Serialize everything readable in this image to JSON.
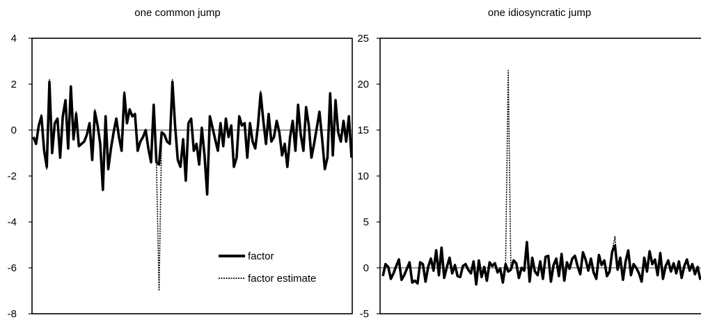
{
  "chart_data": [
    {
      "type": "line",
      "title": "one common jump",
      "xlabel": "",
      "ylabel": "",
      "ylim": [
        -8,
        4
      ],
      "yticks": [
        -8,
        -6,
        -4,
        -2,
        0,
        2,
        4
      ],
      "grid": false,
      "zero_line": true,
      "legend_position": "bottom-right",
      "colors": {
        "factor": "#000000",
        "factor estimate": "#000000",
        "zero_line": "#999999"
      },
      "x": [
        1,
        2,
        3,
        4,
        5,
        6,
        7,
        8,
        9,
        10,
        11,
        12,
        13,
        14,
        15,
        16,
        17,
        18,
        19,
        20,
        21,
        22,
        23,
        24,
        25,
        26,
        27,
        28,
        29,
        30,
        31,
        32,
        33,
        34,
        35,
        36,
        37,
        38,
        39,
        40,
        41,
        42,
        43,
        44,
        45,
        46,
        47,
        48,
        49,
        50,
        51,
        52,
        53,
        54,
        55,
        56,
        57,
        58,
        59,
        60,
        61,
        62,
        63,
        64,
        65,
        66,
        67,
        68,
        69,
        70,
        71,
        72,
        73,
        74,
        75,
        76,
        77,
        78,
        79,
        80,
        81,
        82,
        83,
        84,
        85,
        86,
        87,
        88,
        89,
        90,
        91,
        92,
        93,
        94,
        95,
        96,
        97,
        98,
        99,
        100,
        101,
        102,
        103,
        104,
        105,
        106,
        107,
        108,
        109,
        110,
        111,
        112,
        113,
        114,
        115,
        116,
        117,
        118,
        119,
        120
      ],
      "series": [
        {
          "name": "factor",
          "style": "solid",
          "values": [
            -0.3,
            -0.6,
            0.2,
            0.6,
            -0.9,
            -1.6,
            2.1,
            -1.0,
            0.3,
            0.5,
            -1.2,
            0.6,
            1.3,
            -0.8,
            1.9,
            -0.4,
            0.7,
            -0.7,
            -0.6,
            -0.5,
            -0.2,
            0.3,
            -1.3,
            0.8,
            0.2,
            -0.6,
            -2.6,
            0.6,
            -1.7,
            -0.8,
            -0.1,
            0.5,
            -0.3,
            -0.9,
            1.6,
            0.3,
            0.9,
            0.6,
            0.7,
            -0.9,
            -0.5,
            -0.3,
            0.0,
            -0.8,
            -1.4,
            1.1,
            -1.4,
            -1.5,
            -0.1,
            -0.2,
            -0.5,
            -0.6,
            2.1,
            0.2,
            -1.3,
            -1.6,
            -0.4,
            -2.2,
            0.3,
            0.5,
            -0.9,
            -0.6,
            -1.5,
            0.1,
            -1.1,
            -2.8,
            0.6,
            0.1,
            -0.4,
            -0.9,
            0.3,
            -0.7,
            0.5,
            -0.3,
            0.2,
            -1.6,
            -1.2,
            0.6,
            0.2,
            0.3,
            -1.2,
            0.3,
            -0.5,
            -0.8,
            0.2,
            1.6,
            0.4,
            -0.6,
            0.7,
            -0.5,
            -0.3,
            0.4,
            -0.1,
            -1.1,
            -0.6,
            -1.6,
            -0.3,
            0.4,
            -0.9,
            1.1,
            -0.2,
            -0.9,
            1.0,
            0.2,
            -1.2,
            -0.6,
            0.1,
            0.8,
            -0.4,
            -1.7,
            -1.2,
            1.6,
            -1.1,
            1.3,
            -0.1,
            -0.5,
            0.4,
            -0.5,
            0.6,
            -1.2
          ]
        },
        {
          "name": "factor estimate",
          "style": "dotted",
          "values": [
            -0.3,
            -0.5,
            0.2,
            0.7,
            -0.8,
            -1.7,
            2.2,
            -0.9,
            0.3,
            0.5,
            -1.1,
            0.6,
            1.2,
            -0.8,
            1.8,
            -0.4,
            0.8,
            -0.7,
            -0.6,
            -0.5,
            -0.2,
            0.3,
            -1.3,
            0.9,
            0.2,
            -0.6,
            -2.5,
            0.6,
            -1.6,
            -0.8,
            -0.1,
            0.5,
            -0.3,
            -0.9,
            1.7,
            0.3,
            0.9,
            0.6,
            0.7,
            -0.9,
            -0.5,
            -0.3,
            0.0,
            -0.8,
            -1.4,
            1.1,
            -1.4,
            -7.0,
            -0.1,
            -0.2,
            -0.5,
            -0.6,
            2.2,
            0.2,
            -1.3,
            -1.6,
            -0.4,
            -2.2,
            0.3,
            0.5,
            -0.9,
            -0.6,
            -1.5,
            0.1,
            -1.1,
            -2.7,
            0.6,
            0.1,
            -0.4,
            -0.9,
            0.3,
            -0.7,
            0.5,
            -0.3,
            0.2,
            -1.6,
            -1.2,
            0.6,
            0.2,
            0.3,
            -1.2,
            0.3,
            -0.5,
            -0.8,
            0.2,
            1.7,
            0.4,
            -0.6,
            0.7,
            -0.5,
            -0.3,
            0.4,
            -0.1,
            -1.1,
            -0.6,
            -1.6,
            -0.3,
            0.4,
            -0.9,
            1.1,
            -0.2,
            -0.9,
            1.0,
            0.2,
            -1.2,
            -0.6,
            0.1,
            0.8,
            -0.4,
            -1.7,
            -1.2,
            1.6,
            -1.1,
            1.3,
            -0.1,
            -0.5,
            0.4,
            -0.5,
            0.6,
            -1.2
          ]
        }
      ]
    },
    {
      "type": "line",
      "title": "one idiosyncratic jump",
      "xlabel": "",
      "ylabel": "",
      "ylim": [
        -5,
        25
      ],
      "yticks": [
        -5,
        0,
        5,
        10,
        15,
        20,
        25
      ],
      "grid": false,
      "zero_line": true,
      "colors": {
        "factor": "#000000",
        "factor estimate": "#000000",
        "zero_line": "#999999"
      },
      "x": [
        1,
        2,
        3,
        4,
        5,
        6,
        7,
        8,
        9,
        10,
        11,
        12,
        13,
        14,
        15,
        16,
        17,
        18,
        19,
        20,
        21,
        22,
        23,
        24,
        25,
        26,
        27,
        28,
        29,
        30,
        31,
        32,
        33,
        34,
        35,
        36,
        37,
        38,
        39,
        40,
        41,
        42,
        43,
        44,
        45,
        46,
        47,
        48,
        49,
        50,
        51,
        52,
        53,
        54,
        55,
        56,
        57,
        58,
        59,
        60,
        61,
        62,
        63,
        64,
        65,
        66,
        67,
        68,
        69,
        70,
        71,
        72,
        73,
        74,
        75,
        76,
        77,
        78,
        79,
        80,
        81,
        82,
        83,
        84,
        85,
        86,
        87,
        88,
        89,
        90,
        91,
        92,
        93,
        94,
        95,
        96,
        97,
        98,
        99,
        100,
        101,
        102,
        103,
        104,
        105,
        106,
        107,
        108,
        109,
        110,
        111,
        112,
        113,
        114,
        115,
        116,
        117,
        118,
        119,
        120
      ],
      "series": [
        {
          "name": "factor",
          "style": "solid",
          "values": [
            -0.9,
            0.4,
            0.1,
            -1.2,
            -0.6,
            0.2,
            0.9,
            -1.3,
            -0.8,
            -0.1,
            0.6,
            -1.6,
            -1.4,
            -1.7,
            0.6,
            0.4,
            -1.5,
            0.1,
            1.0,
            -0.3,
            1.9,
            -0.8,
            2.2,
            -1.1,
            0.1,
            1.1,
            -0.6,
            0.3,
            -0.9,
            -1.0,
            0.2,
            0.4,
            -0.2,
            -0.6,
            0.7,
            -1.8,
            0.8,
            -1.0,
            0.1,
            -1.4,
            0.6,
            0.2,
            0.5,
            -0.5,
            -0.1,
            -1.6,
            0.4,
            -0.4,
            -0.2,
            0.8,
            0.5,
            -1.1,
            0.0,
            -0.3,
            2.8,
            -1.5,
            1.1,
            -0.4,
            -0.8,
            0.7,
            -1.2,
            1.2,
            1.3,
            -1.5,
            0.3,
            1.0,
            -0.9,
            1.5,
            -1.4,
            0.6,
            -0.1,
            1.0,
            1.3,
            0.2,
            -0.7,
            1.7,
            0.9,
            -0.3,
            1.0,
            -0.5,
            -1.2,
            1.4,
            0.3,
            0.8,
            -0.9,
            -0.4,
            1.8,
            2.4,
            -0.2,
            1.1,
            -1.3,
            0.7,
            1.9,
            -0.8,
            0.4,
            0.0,
            -0.6,
            -1.5,
            1.1,
            -0.4,
            1.8,
            0.4,
            0.9,
            -0.8,
            1.6,
            -1.2,
            0.2,
            0.8,
            -0.4,
            0.5,
            -0.6,
            0.7,
            -1.1,
            0.2,
            0.9,
            -0.3,
            0.4,
            -0.7,
            0.1,
            -1.3
          ]
        },
        {
          "name": "factor estimate",
          "style": "dotted",
          "values": [
            -0.8,
            0.4,
            0.1,
            -1.1,
            -0.6,
            0.3,
            1.0,
            -1.2,
            -0.8,
            -0.1,
            0.6,
            -1.5,
            -1.4,
            -1.6,
            0.6,
            0.4,
            -1.4,
            0.1,
            1.1,
            -0.3,
            2.0,
            -0.8,
            2.3,
            -1.0,
            0.1,
            1.1,
            -0.6,
            0.3,
            -0.9,
            -1.0,
            0.2,
            0.4,
            -0.2,
            -0.6,
            0.7,
            -1.7,
            0.8,
            -1.0,
            0.1,
            -1.4,
            0.6,
            0.2,
            0.5,
            -0.5,
            -0.1,
            -1.5,
            0.4,
            21.5,
            -0.2,
            0.8,
            0.5,
            -1.1,
            0.0,
            -0.3,
            2.9,
            -1.5,
            1.1,
            -0.4,
            -0.8,
            0.7,
            -1.2,
            1.2,
            1.3,
            -1.5,
            0.3,
            1.0,
            -0.9,
            1.5,
            -1.4,
            0.6,
            -0.1,
            1.0,
            1.3,
            0.2,
            -0.7,
            1.8,
            0.9,
            -0.3,
            1.0,
            -0.5,
            -1.2,
            1.4,
            0.3,
            0.8,
            -0.9,
            -0.4,
            1.9,
            3.4,
            -0.2,
            1.1,
            -1.3,
            0.7,
            1.9,
            -0.8,
            0.4,
            0.0,
            -0.6,
            -1.5,
            1.1,
            -0.4,
            1.8,
            0.4,
            0.9,
            -0.8,
            1.7,
            -1.2,
            0.2,
            0.8,
            -0.4,
            0.5,
            -0.6,
            0.7,
            -1.1,
            0.2,
            0.9,
            -0.3,
            0.4,
            -0.7,
            0.1,
            -1.3
          ]
        }
      ]
    }
  ]
}
